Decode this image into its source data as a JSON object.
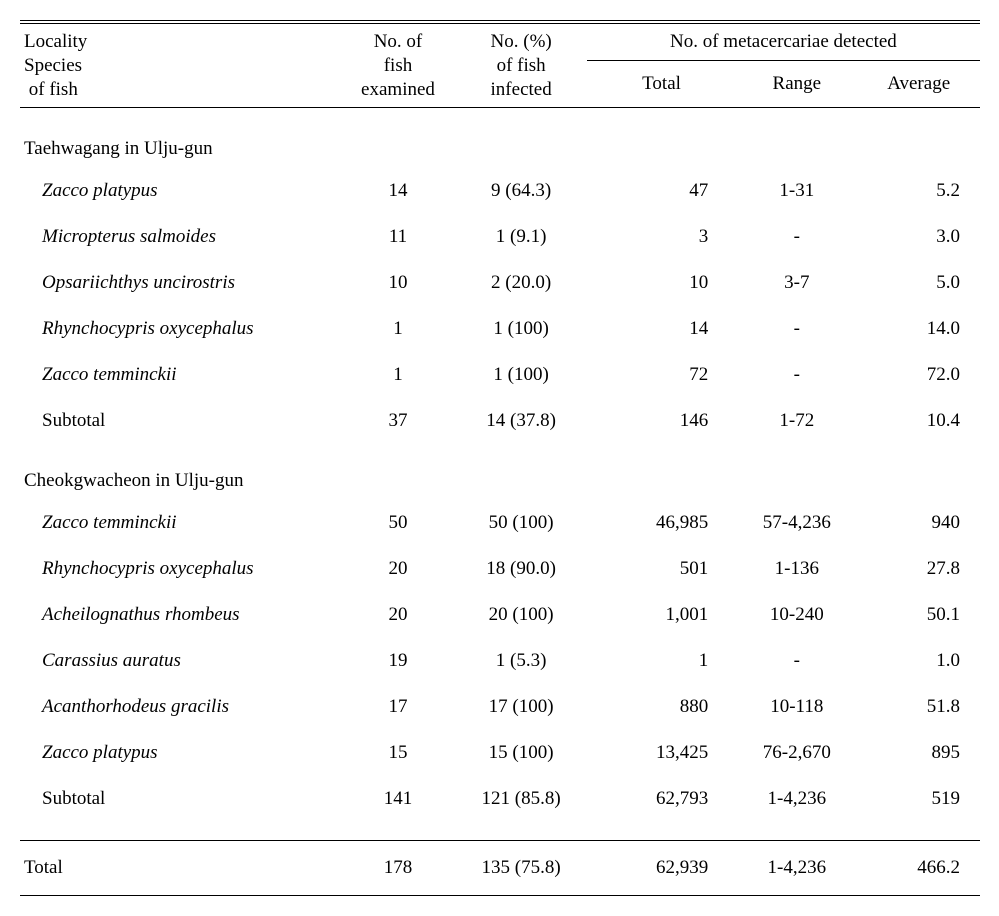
{
  "headers": {
    "locality_line1": "Locality",
    "locality_line2": "Species",
    "locality_line3": " of fish",
    "examined_line1": "No. of",
    "examined_line2": "fish",
    "examined_line3": "examined",
    "infected_line1": "No. (%)",
    "infected_line2": "of fish",
    "infected_line3": "infected",
    "meta_super": "No. of metacercariae detected",
    "total": "Total",
    "range": "Range",
    "average": "Average"
  },
  "groups": [
    {
      "locality": "Taehwagang in Ulju-gun",
      "rows": [
        {
          "name": "Zacco platypus",
          "examined": "14",
          "infected": "9 (64.3)",
          "total": "47",
          "range": "1-31",
          "avg": "5.2",
          "italic": true
        },
        {
          "name": "Micropterus salmoides",
          "examined": "11",
          "infected": "1 (9.1)",
          "total": "3",
          "range": "-",
          "avg": "3.0",
          "italic": true
        },
        {
          "name": "Opsariichthys uncirostris",
          "examined": "10",
          "infected": "2 (20.0)",
          "total": "10",
          "range": "3-7",
          "avg": "5.0",
          "italic": true
        },
        {
          "name": "Rhynchocypris oxycephalus",
          "examined": "1",
          "infected": "1 (100)",
          "total": "14",
          "range": "-",
          "avg": "14.0",
          "italic": true
        },
        {
          "name": "Zacco temminckii",
          "examined": "1",
          "infected": "1 (100)",
          "total": "72",
          "range": "-",
          "avg": "72.0",
          "italic": true
        },
        {
          "name": "Subtotal",
          "examined": "37",
          "infected": "14 (37.8)",
          "total": "146",
          "range": "1-72",
          "avg": "10.4",
          "italic": false
        }
      ]
    },
    {
      "locality": "Cheokgwacheon in Ulju-gun",
      "rows": [
        {
          "name": "Zacco temminckii",
          "examined": "50",
          "infected": "50 (100)",
          "total": "46,985",
          "range": "57-4,236",
          "avg": "940",
          "italic": true
        },
        {
          "name": "Rhynchocypris oxycephalus",
          "examined": "20",
          "infected": "18 (90.0)",
          "total": "501",
          "range": "1-136",
          "avg": "27.8",
          "italic": true
        },
        {
          "name": "Acheilognathus rhombeus",
          "examined": "20",
          "infected": "20 (100)",
          "total": "1,001",
          "range": "10-240",
          "avg": "50.1",
          "italic": true
        },
        {
          "name": "Carassius auratus",
          "examined": "19",
          "infected": "1 (5.3)",
          "total": "1",
          "range": "-",
          "avg": "1.0",
          "italic": true
        },
        {
          "name": "Acanthorhodeus gracilis",
          "examined": "17",
          "infected": "17 (100)",
          "total": "880",
          "range": "10-118",
          "avg": "51.8",
          "italic": true
        },
        {
          "name": "Zacco platypus",
          "examined": "15",
          "infected": "15 (100)",
          "total": "13,425",
          "range": "76-2,670",
          "avg": "895",
          "italic": true
        },
        {
          "name": "Subtotal",
          "examined": "141",
          "infected": "121 (85.8)",
          "total": "62,793",
          "range": "1-4,236",
          "avg": "519",
          "italic": false
        }
      ]
    }
  ],
  "total_row": {
    "label": "Total",
    "examined": "178",
    "infected": "135 (75.8)",
    "total": "62,939",
    "range": "1-4,236",
    "avg": "466.2"
  }
}
